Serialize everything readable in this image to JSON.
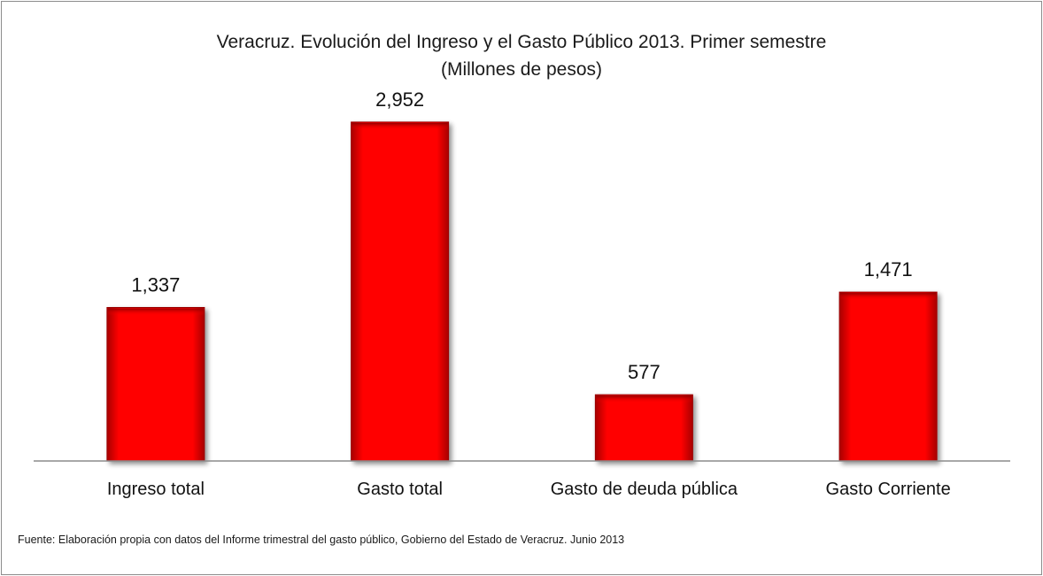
{
  "chart_data": {
    "type": "bar",
    "title": "Veracruz. Evolución del Ingreso y el Gasto Público 2013. Primer semestre",
    "subtitle": "(Millones  de  pesos)",
    "categories": [
      "Ingreso total",
      "Gasto total",
      "Gasto de deuda pública",
      "Gasto Corriente"
    ],
    "values": [
      1337,
      2952,
      577,
      1471
    ],
    "value_labels": [
      "1,337",
      "2,952",
      "577",
      "1,471"
    ],
    "ylim": [
      0,
      3200
    ],
    "grid": false,
    "legend": "none",
    "bar_color": "#ff0000",
    "bar_edge_color": "#9b0000"
  },
  "source_note": "Fuente: Elaboración propia con datos  del Informe trimestral del gasto público, Gobierno del Estado de Veracruz. Junio 2013"
}
